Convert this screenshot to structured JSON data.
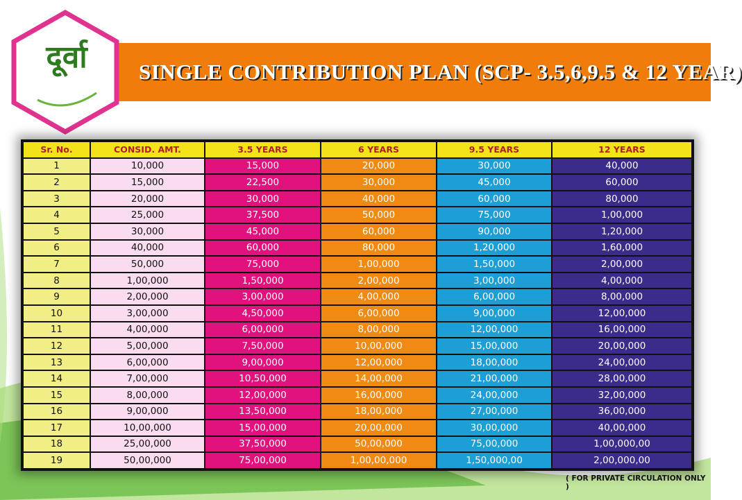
{
  "header": {
    "logo": "दूर्वा",
    "title": "SINGLE CONTRIBUTION PLAN (SCP- 3.5,6,9.5 & 12 YEAR)"
  },
  "table": {
    "columns": [
      "Sr. No.",
      "CONSID. AMT.",
      "3.5 YEARS",
      "6 YEARS",
      "9.5 YEARS",
      "12 YEARS"
    ],
    "rows": [
      [
        "1",
        "10,000",
        "15,000",
        "20,000",
        "30,000",
        "40,000"
      ],
      [
        "2",
        "15,000",
        "22,500",
        "30,000",
        "45,000",
        "60,000"
      ],
      [
        "3",
        "20,000",
        "30,000",
        "40,000",
        "60,000",
        "80,000"
      ],
      [
        "4",
        "25,000",
        "37,500",
        "50,000",
        "75,000",
        "1,00,000"
      ],
      [
        "5",
        "30,000",
        "45,000",
        "60,000",
        "90,000",
        "1,20,000"
      ],
      [
        "6",
        "40,000",
        "60,000",
        "80,000",
        "1,20,000",
        "1,60,000"
      ],
      [
        "7",
        "50,000",
        "75,000",
        "1,00,000",
        "1,50,000",
        "2,00,000"
      ],
      [
        "8",
        "1,00,000",
        "1,50,000",
        "2,00,000",
        "3,00,000",
        "4,00,000"
      ],
      [
        "9",
        "2,00,000",
        "3,00,000",
        "4,00,000",
        "6,00,000",
        "8,00,000"
      ],
      [
        "10",
        "3,00,000",
        "4,50,000",
        "6,00,000",
        "9,00,000",
        "12,00,000"
      ],
      [
        "11",
        "4,00,000",
        "6,00,000",
        "8,00,000",
        "12,00,000",
        "16,00,000"
      ],
      [
        "12",
        "5,00,000",
        "7,50,000",
        "10,00,000",
        "15,00,000",
        "20,00,000"
      ],
      [
        "13",
        "6,00,000",
        "9,00,000",
        "12,00,000",
        "18,00,000",
        "24,00,000"
      ],
      [
        "14",
        "7,00,000",
        "10,50,000",
        "14,00,000",
        "21,00,000",
        "28,00,000"
      ],
      [
        "15",
        "8,00,000",
        "12,00,000",
        "16,00,000",
        "24,00,000",
        "32,00,000"
      ],
      [
        "16",
        "9,00,000",
        "13,50,000",
        "18,00,000",
        "27,00,000",
        "36,00,000"
      ],
      [
        "17",
        "10,00,000",
        "15,00,000",
        "20,00,000",
        "30,00,000",
        "40,00,000"
      ],
      [
        "18",
        "25,00,000",
        "37,50,000",
        "50,00,000",
        "75,00,000",
        "1,00,000,00"
      ],
      [
        "19",
        "50,00,000",
        "75,00,000",
        "1,00,00,000",
        "1,50,000,00",
        "2,00,000,00"
      ]
    ]
  },
  "footer": "( FOR PRIVATE CIRCULATION ONLY )"
}
